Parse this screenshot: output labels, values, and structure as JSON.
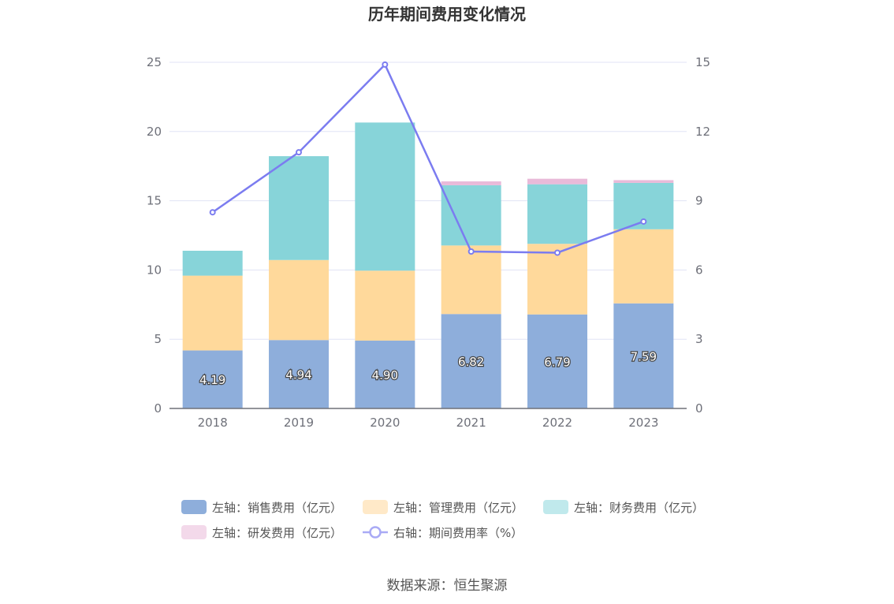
{
  "chart_data": {
    "type": "bar",
    "title": "历年期间费用变化情况",
    "categories": [
      "2018",
      "2019",
      "2020",
      "2021",
      "2022",
      "2023"
    ],
    "y_left": {
      "min": 0,
      "max": 25,
      "ticks": [
        0,
        5,
        10,
        15,
        20,
        25
      ]
    },
    "y_right": {
      "min": 0,
      "max": 15,
      "ticks": [
        0,
        3,
        6,
        9,
        12,
        15
      ]
    },
    "grid": true,
    "legend_position": "bottom",
    "series": [
      {
        "name": "左轴：销售费用（亿元）",
        "type": "bar",
        "axis": "left",
        "stack": "total",
        "color": "#8eaedb",
        "legend_color": "#8eaedb",
        "values": [
          4.19,
          4.94,
          4.9,
          6.82,
          6.79,
          7.59
        ],
        "labels": [
          "4.19",
          "4.94",
          "4.90",
          "6.82",
          "6.79",
          "7.59"
        ]
      },
      {
        "name": "左轴：管理费用（亿元）",
        "type": "bar",
        "axis": "left",
        "stack": "total",
        "color": "#ffd99b",
        "legend_color": "#ffe9c8",
        "values": [
          5.4,
          5.78,
          5.05,
          4.95,
          5.1,
          5.35
        ]
      },
      {
        "name": "左轴：财务费用（亿元）",
        "type": "bar",
        "axis": "left",
        "stack": "total",
        "color": "#87d4d9",
        "legend_color": "#c0e9ec",
        "values": [
          1.8,
          7.5,
          10.7,
          4.35,
          4.3,
          3.35
        ]
      },
      {
        "name": "左轴：研发费用（亿元）",
        "type": "bar",
        "axis": "left",
        "stack": "total",
        "color": "#e9bad9",
        "legend_color": "#f3d9ea",
        "values": [
          0,
          0,
          0,
          0.28,
          0.4,
          0.2
        ]
      },
      {
        "name": "右轴：期间费用率（%）",
        "type": "line",
        "axis": "right",
        "color": "#7b7cf0",
        "legend_color": "#a9aaf5",
        "values": [
          8.5,
          11.1,
          14.9,
          6.8,
          6.75,
          8.1
        ]
      }
    ]
  },
  "source": "数据来源：恒生聚源"
}
